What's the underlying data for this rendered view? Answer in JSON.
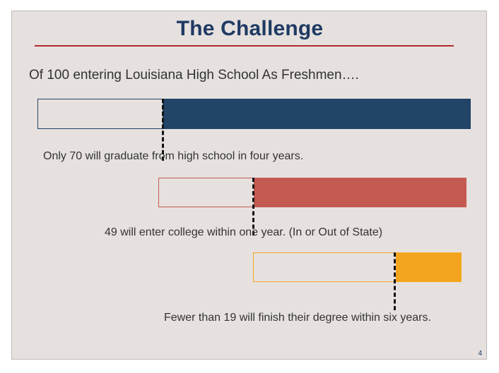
{
  "slide": {
    "title": "The Challenge",
    "intro": "Of 100 entering Louisiana High School As Freshmen….",
    "page_number": "4"
  },
  "funnel": [
    {
      "name": "high-school-graduation",
      "caption": "Only 70 will graduate from high school in four years.",
      "value": 70,
      "color": "#214467"
    },
    {
      "name": "college-entry",
      "caption": "49 will enter college within one year. (In or Out of State)",
      "value": 49,
      "color": "#c55a52"
    },
    {
      "name": "degree-completion",
      "caption": "Fewer than 19 will finish their degree within six years.",
      "value": 19,
      "color": "#f4a51f"
    }
  ]
}
